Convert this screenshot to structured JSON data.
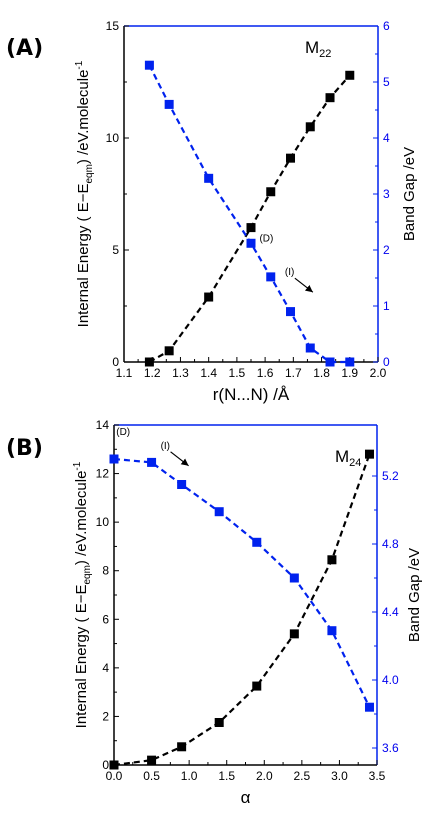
{
  "chart_data": [
    {
      "type": "line",
      "panel_label": "(A)",
      "model_label": "M",
      "model_sub": "22",
      "xlabel": "r(N...N) /Å",
      "ylabel_left": "Internal Energy ( E−E",
      "ylabel_left_sub": "eqm",
      "ylabel_left_end": ") /eV.molecule",
      "ylabel_left_sup": "-1",
      "ylabel_right": "Band Gap /eV",
      "xlim": [
        1.1,
        2.0
      ],
      "ylim_left": [
        0,
        15
      ],
      "ylim_right": [
        0,
        6
      ],
      "x_ticks": [
        "1.1",
        "1.2",
        "1.3",
        "1.4",
        "1.5",
        "1.6",
        "1.7",
        "1.8",
        "1.9",
        "2.0"
      ],
      "y_left_ticks": [
        "0",
        "5",
        "10",
        "15"
      ],
      "y_right_ticks": [
        "0",
        "1",
        "2",
        "3",
        "4",
        "5",
        "6"
      ],
      "series": [
        {
          "axis": "left",
          "color": "#000000",
          "x": [
            1.19,
            1.26,
            1.4,
            1.55,
            1.62,
            1.69,
            1.76,
            1.83,
            1.9
          ],
          "y": [
            0.0,
            0.5,
            2.9,
            6.0,
            7.6,
            9.1,
            10.5,
            11.8,
            12.8
          ]
        },
        {
          "axis": "right",
          "color": "#0022ee",
          "x": [
            1.19,
            1.26,
            1.4,
            1.55,
            1.62,
            1.69,
            1.76,
            1.83,
            1.9
          ],
          "y": [
            5.3,
            4.6,
            3.28,
            2.12,
            1.52,
            0.9,
            0.25,
            0.0,
            0.0
          ]
        }
      ],
      "annotations": [
        {
          "text": "(D)",
          "x": 1.58,
          "y": 2.15,
          "axis": "right"
        },
        {
          "text": "(I)",
          "x": 1.67,
          "y": 1.55,
          "axis": "right"
        }
      ]
    },
    {
      "type": "line",
      "panel_label": "(B)",
      "model_label": "M",
      "model_sub": "24",
      "xlabel": "α",
      "ylabel_left": "Internal Energy ( E−E",
      "ylabel_left_sub": "eqm",
      "ylabel_left_end": ") /eV.molecule",
      "ylabel_left_sup": "-1",
      "ylabel_right": "Band Gap /eV",
      "xlim": [
        0.0,
        3.5
      ],
      "ylim_left": [
        0,
        14
      ],
      "ylim_right": [
        3.5,
        5.5
      ],
      "x_ticks": [
        "0.0",
        "0.5",
        "1.0",
        "1.5",
        "2.0",
        "2.5",
        "3.0",
        "3.5"
      ],
      "y_left_ticks": [
        "0",
        "2",
        "4",
        "6",
        "8",
        "10",
        "12",
        "14"
      ],
      "y_right_ticks": [
        "3.6",
        "4.0",
        "4.4",
        "4.8",
        "5.2"
      ],
      "series": [
        {
          "axis": "left",
          "color": "#000000",
          "x": [
            0.0,
            0.5,
            0.9,
            1.4,
            1.9,
            2.4,
            2.9,
            3.4
          ],
          "y": [
            0.0,
            0.2,
            0.75,
            1.75,
            3.25,
            5.4,
            8.45,
            12.8
          ]
        },
        {
          "axis": "right",
          "color": "#0022ee",
          "x": [
            0.0,
            0.5,
            0.9,
            1.4,
            1.9,
            2.4,
            2.9,
            3.4
          ],
          "y": [
            5.3,
            5.28,
            5.15,
            4.99,
            4.81,
            4.6,
            4.29,
            3.84
          ]
        }
      ],
      "annotations": [
        {
          "text": "(D)",
          "x": 0.03,
          "y": 5.44,
          "axis": "right"
        },
        {
          "text": "(I)",
          "x": 0.62,
          "y": 5.36,
          "axis": "right"
        }
      ]
    }
  ]
}
